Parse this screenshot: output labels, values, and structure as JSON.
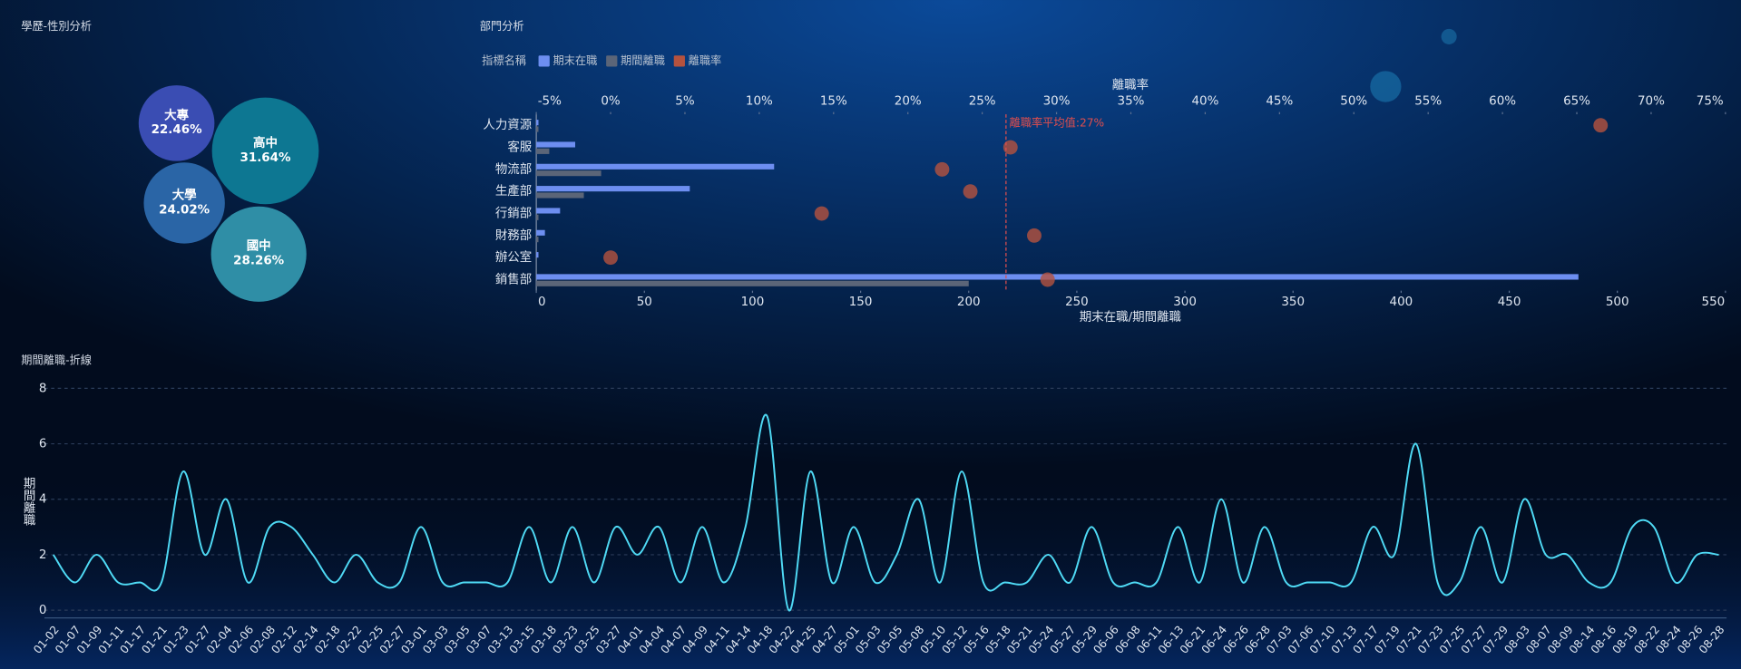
{
  "chart_data": [
    {
      "type": "bubble",
      "title": "學歷-性別分析",
      "categories": [
        "大專",
        "高中",
        "大學",
        "國中"
      ],
      "values": [
        22.46,
        31.64,
        24.02,
        28.26
      ],
      "value_labels": [
        "22.46%",
        "31.64%",
        "24.02%",
        "28.26%"
      ],
      "colors": [
        "#3a4db3",
        "#0d7792",
        "#2a65a6",
        "#2f8ea6"
      ]
    },
    {
      "type": "bar",
      "orientation": "horizontal",
      "title": "部門分析",
      "legend_title": "指標名稱",
      "categories": [
        "人力資源",
        "客服",
        "物流部",
        "生產部",
        "行銷部",
        "財務部",
        "辦公室",
        "銷售部"
      ],
      "series": [
        {
          "name": "期末在職",
          "color": "#6d8ef0",
          "values": [
            1,
            18,
            110,
            71,
            11,
            4,
            1,
            482
          ]
        },
        {
          "name": "期間離職",
          "color": "#5b6578",
          "values": [
            1,
            6,
            30,
            22,
            1,
            1,
            0,
            200
          ]
        },
        {
          "name": "離職率",
          "color": "#b5523e",
          "axis": "x2",
          "values": [
            66.6,
            26.9,
            22.3,
            24.2,
            14.2,
            28.5,
            0,
            29.4
          ]
        }
      ],
      "xlabel": "期末在職/期間離職",
      "xlim": [
        0,
        550
      ],
      "xticks": [
        0,
        50,
        100,
        150,
        200,
        250,
        300,
        350,
        400,
        450,
        500,
        550
      ],
      "x2label": "離職率",
      "x2lim": [
        -5,
        75
      ],
      "x2ticks": [
        {
          "value": -5,
          "label": "-5%"
        },
        {
          "value": 0,
          "label": "0%"
        },
        {
          "value": 5,
          "label": "5%"
        },
        {
          "value": 10,
          "label": "10%"
        },
        {
          "value": 15,
          "label": "15%"
        },
        {
          "value": 20,
          "label": "20%"
        },
        {
          "value": 25,
          "label": "25%"
        },
        {
          "value": 30,
          "label": "30%"
        },
        {
          "value": 35,
          "label": "35%"
        },
        {
          "value": 40,
          "label": "40%"
        },
        {
          "value": 45,
          "label": "45%"
        },
        {
          "value": 50,
          "label": "50%"
        },
        {
          "value": 55,
          "label": "55%"
        },
        {
          "value": 60,
          "label": "60%"
        },
        {
          "value": 65,
          "label": "65%"
        },
        {
          "value": 70,
          "label": "70%"
        },
        {
          "value": 75,
          "label": "75%"
        }
      ],
      "mark_line": {
        "value": 26.6,
        "label": "離職率平均值:27%",
        "color": "#e04e4e"
      }
    },
    {
      "type": "line",
      "title": "期間離職-折線",
      "ylabel": "期間離職",
      "color": "#4fdaf5",
      "categories": [
        "01-02",
        "01-07",
        "01-09",
        "01-11",
        "01-17",
        "01-21",
        "01-23",
        "01-27",
        "02-04",
        "02-06",
        "02-08",
        "02-12",
        "02-14",
        "02-18",
        "02-22",
        "02-25",
        "02-27",
        "03-01",
        "03-03",
        "03-05",
        "03-07",
        "03-13",
        "03-15",
        "03-18",
        "03-23",
        "03-25",
        "03-27",
        "04-01",
        "04-04",
        "04-07",
        "04-09",
        "04-11",
        "04-14",
        "04-18",
        "04-22",
        "04-25",
        "04-27",
        "05-01",
        "05-03",
        "05-05",
        "05-08",
        "05-10",
        "05-12",
        "05-16",
        "05-18",
        "05-21",
        "05-24",
        "05-27",
        "05-29",
        "06-06",
        "06-08",
        "06-11",
        "06-13",
        "06-21",
        "06-24",
        "06-26",
        "06-28",
        "07-03",
        "07-06",
        "07-10",
        "07-13",
        "07-17",
        "07-19",
        "07-21",
        "07-23",
        "07-25",
        "07-27",
        "07-29",
        "08-03",
        "08-07",
        "08-09",
        "08-14",
        "08-16",
        "08-19",
        "08-22",
        "08-24",
        "08-26",
        "08-28"
      ],
      "values": [
        2,
        1,
        2,
        1,
        1,
        1,
        5,
        2,
        4,
        1,
        3,
        3,
        2,
        1,
        2,
        1,
        1,
        3,
        1,
        1,
        1,
        1,
        3,
        1,
        3,
        1,
        3,
        2,
        3,
        1,
        3,
        1,
        3,
        7,
        0,
        5,
        1,
        3,
        1,
        2,
        4,
        1,
        5,
        1,
        1,
        1,
        2,
        1,
        3,
        1,
        1,
        1,
        3,
        1,
        4,
        1,
        3,
        1,
        1,
        1,
        1,
        3,
        2,
        6,
        1,
        1,
        3,
        1,
        4,
        2,
        2,
        1,
        1,
        3,
        3,
        1,
        2,
        2
      ],
      "ylim": [
        0,
        8
      ],
      "yticks": [
        0,
        2,
        4,
        6,
        8
      ],
      "grid": true
    }
  ]
}
